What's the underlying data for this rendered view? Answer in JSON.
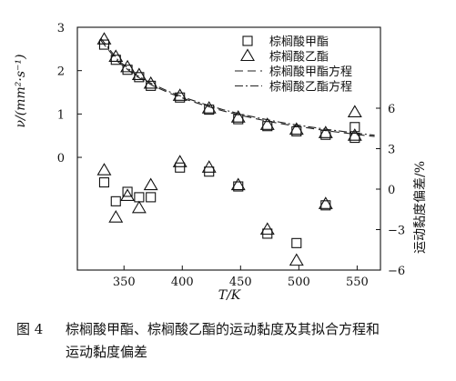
{
  "chart_data": {
    "type": "scatter",
    "x": {
      "label": "T/K",
      "range": [
        310,
        570
      ],
      "ticks": [
        350,
        400,
        450,
        500,
        550
      ]
    },
    "y_left": {
      "label": "ν/(mm²·s⁻¹)",
      "range": [
        -2.6,
        3
      ],
      "ticks": [
        0,
        1,
        2,
        3
      ]
    },
    "y_right": {
      "label": "运动黏度偏差/%",
      "range": [
        -6,
        12
      ],
      "ticks": [
        -6,
        -3,
        0,
        3,
        6
      ]
    },
    "legend": {
      "position": "top-right",
      "entries": [
        {
          "label": "棕榈酸甲酯",
          "kind": "square"
        },
        {
          "label": "棕榈酸乙酯",
          "kind": "triangle"
        },
        {
          "label": "棕榈酸甲酯方程",
          "kind": "dashed"
        },
        {
          "label": "棕榈酸乙酯方程",
          "kind": "dashdot"
        }
      ]
    },
    "series": [
      {
        "name": "棕榈酸甲酯",
        "axis": "left",
        "marker": "square",
        "x": [
          333,
          343,
          353,
          363,
          373,
          398,
          423,
          448,
          473,
          498,
          523,
          548
        ],
        "y": [
          2.6,
          2.25,
          2.02,
          1.85,
          1.65,
          1.38,
          1.1,
          0.88,
          0.72,
          0.6,
          0.52,
          0.45
        ]
      },
      {
        "name": "棕榈酸乙酯",
        "axis": "left",
        "marker": "triangle",
        "x": [
          333,
          343,
          353,
          363,
          373,
          398,
          423,
          448,
          473,
          498,
          523,
          548
        ],
        "y": [
          2.72,
          2.32,
          2.08,
          1.9,
          1.7,
          1.42,
          1.13,
          0.92,
          0.75,
          0.64,
          0.56,
          0.5
        ]
      },
      {
        "name": "棕榈酸甲酯方程",
        "axis": "left",
        "line": "dashed",
        "x": [
          330,
          345,
          360,
          375,
          390,
          405,
          420,
          435,
          450,
          465,
          480,
          495,
          510,
          525,
          540,
          555,
          565
        ],
        "y": [
          2.7,
          2.2,
          1.88,
          1.65,
          1.47,
          1.32,
          1.19,
          1.07,
          0.97,
          0.88,
          0.8,
          0.73,
          0.67,
          0.61,
          0.56,
          0.51,
          0.48
        ]
      },
      {
        "name": "棕榈酸乙酯方程",
        "axis": "left",
        "line": "dashdot",
        "x": [
          330,
          345,
          360,
          375,
          390,
          405,
          420,
          435,
          450,
          465,
          480,
          495,
          510,
          525,
          540,
          555,
          565
        ],
        "y": [
          2.75,
          2.24,
          1.91,
          1.68,
          1.5,
          1.35,
          1.22,
          1.1,
          1.0,
          0.91,
          0.83,
          0.76,
          0.7,
          0.64,
          0.59,
          0.54,
          0.51
        ]
      },
      {
        "name": "棕榈酸甲酯",
        "axis": "right",
        "marker": "square",
        "x": [
          333,
          343,
          353,
          363,
          373,
          398,
          423,
          448,
          473,
          498,
          523,
          548
        ],
        "y": [
          0.5,
          -0.9,
          -0.2,
          -0.6,
          -0.6,
          1.6,
          1.3,
          0.2,
          -3.3,
          -4.0,
          -1.2,
          4.6
        ]
      },
      {
        "name": "棕榈酸乙酯",
        "axis": "right",
        "marker": "triangle",
        "x": [
          333,
          343,
          353,
          363,
          373,
          398,
          423,
          448,
          473,
          498,
          523,
          548
        ],
        "y": [
          1.4,
          -2.1,
          -0.5,
          -1.4,
          0.3,
          2.0,
          1.6,
          0.3,
          -3.0,
          -5.3,
          -1.1,
          5.7
        ]
      }
    ]
  },
  "caption": {
    "figure_number": "图 4",
    "line1": "棕榈酸甲酯、棕榈酸乙酯的运动黏度及其拟合方程和",
    "line2": "运动黏度偏差"
  }
}
